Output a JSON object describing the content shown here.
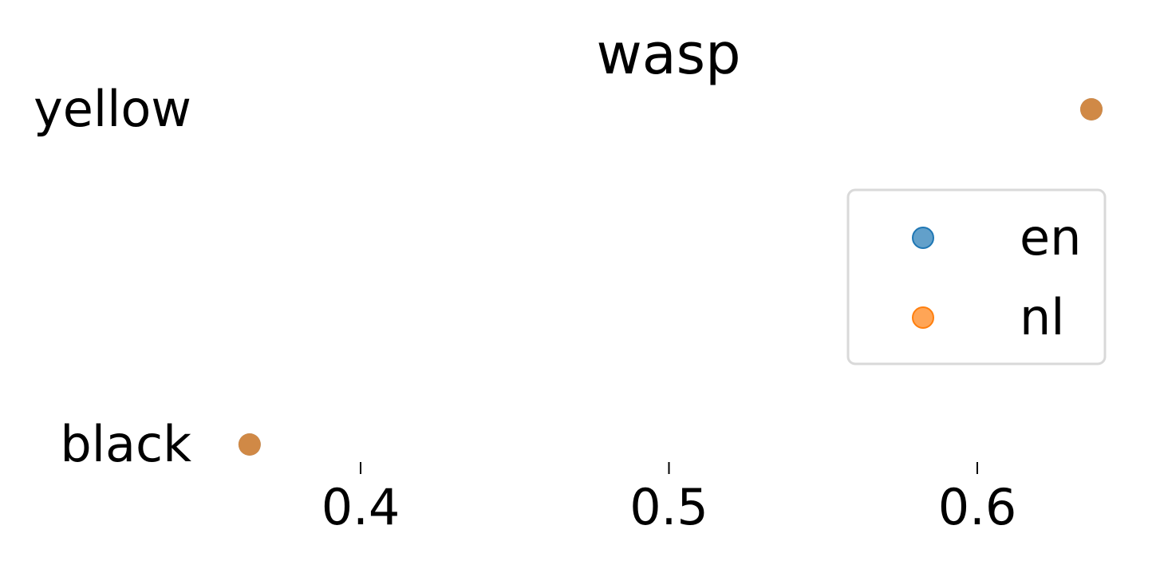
{
  "chart_data": {
    "type": "scatter",
    "title": "wasp",
    "xlabel": "",
    "ylabel": "",
    "categories": [
      "black",
      "yellow"
    ],
    "x_ticks": [
      "0.4",
      "0.5",
      "0.6"
    ],
    "x_tick_values": [
      0.4,
      0.5,
      0.6
    ],
    "xlim": [
      0.36,
      0.64
    ],
    "grid": false,
    "legend_position": "right",
    "series": [
      {
        "name": "en",
        "color": "#1f77b4",
        "points": [
          {
            "category": "black",
            "x": 0.364
          },
          {
            "category": "yellow",
            "x": 0.637
          }
        ]
      },
      {
        "name": "nl",
        "color": "#ff7f0e",
        "points": [
          {
            "category": "black",
            "x": 0.364
          },
          {
            "category": "yellow",
            "x": 0.637
          }
        ]
      }
    ]
  }
}
